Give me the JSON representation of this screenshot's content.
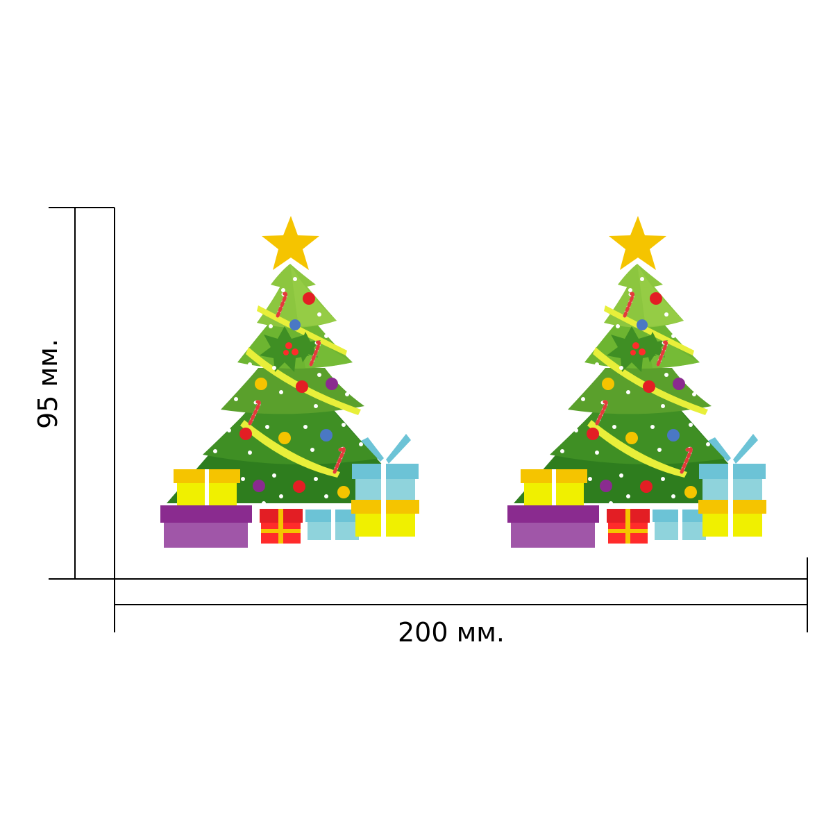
{
  "dimensions": {
    "width_label": "200 мм.",
    "height_label": "95 мм."
  },
  "artwork": {
    "tree_count": 2
  },
  "colors": {
    "line": "#000000",
    "background": "#ffffff",
    "star": "#f5c400",
    "tree_light": "#8cc63f",
    "tree_mid": "#5aa02c",
    "tree_dark": "#2e7d1e",
    "garland": "#e8ef3a",
    "gift_yellow": "#f0f000",
    "gift_orange": "#f5c400",
    "gift_purple": "#a056a8",
    "gift_purple_dark": "#8a2b8f",
    "gift_red": "#ff2b2b",
    "gift_blue": "#8fd3dc",
    "gift_blue_dark": "#6cc3d6"
  }
}
